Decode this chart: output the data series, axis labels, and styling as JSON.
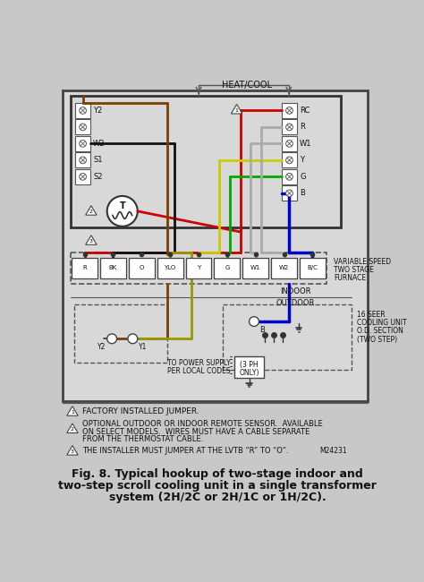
{
  "bg_color": "#c8c8c8",
  "inner_bg": "#d8d8d8",
  "white": "#ffffff",
  "title_line1": "Fig. 8. Typical hookup of two-stage indoor and",
  "title_line2": "two-step scroll cooling unit in a single transformer",
  "title_line3": "system (2H/2C or 2H/1C or 1H/2C).",
  "note1": "FACTORY INSTALLED JUMPER.",
  "note2_line1": "OPTIONAL OUTDOOR OR INDOOR REMOTE SENSOR.  AVAILABLE",
  "note2_line2": "ON SELECT MODELS.  WIRES MUST HAVE A CABLE SEPARATE",
  "note2_line3": "FROM THE THERMOSTAT CABLE.",
  "note3_line1": "THE INSTALLER MUST JUMPER AT THE LVTB “R” TO “O”.",
  "note3_ref": "M24231",
  "heat_cool_label": "HEAT/COOL",
  "furnace_label1": "VARIABLE SPEED",
  "furnace_label2": "TWO STAGE",
  "furnace_label3": "FURNACE",
  "indoor_label": "INDOOR",
  "outdoor_label": "OUTDOOR",
  "cooling_label1": "16 SEER",
  "cooling_label2": "COOLING UNIT",
  "cooling_label3": "O.D. SECTION",
  "cooling_label4": "(TWO STEP)",
  "power_label1": "TO POWER SUPPLY",
  "power_label2": "PER LOCAL CODES",
  "ph_label1": "(3 PH",
  "ph_label2": "ONLY)",
  "left_terms": [
    "Y2",
    "",
    "W2",
    "S1",
    "S2"
  ],
  "right_terms": [
    "RC",
    "R",
    "W1",
    "Y",
    "G",
    "B"
  ],
  "furnace_terminals": [
    "R",
    "BK",
    "O",
    "YLO",
    "Y",
    "G",
    "W1",
    "W2",
    "B/C"
  ],
  "wire_red": "#cc0000",
  "wire_black": "#111111",
  "wire_brown": "#7B3F00",
  "wire_yellow": "#cccc00",
  "wire_green": "#00aa00",
  "wire_gray": "#aaaaaa",
  "wire_blue": "#0000cc",
  "wire_dark_yellow": "#999900"
}
